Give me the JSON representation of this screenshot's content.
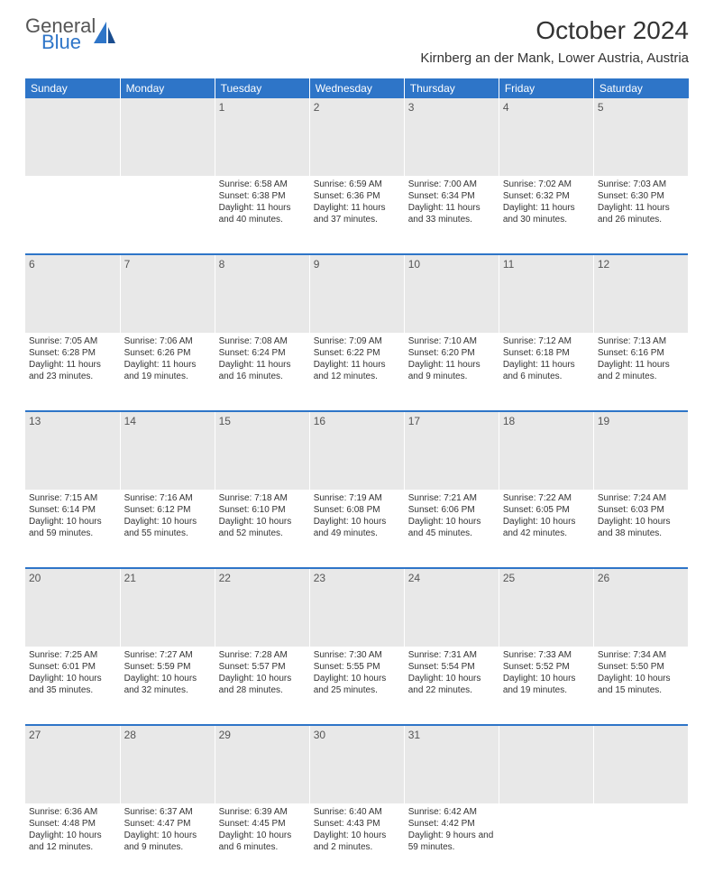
{
  "logo": {
    "general": "General",
    "blue": "Blue"
  },
  "title": "October 2024",
  "location": "Kirnberg an der Mank, Lower Austria, Austria",
  "weekdays": [
    "Sunday",
    "Monday",
    "Tuesday",
    "Wednesday",
    "Thursday",
    "Friday",
    "Saturday"
  ],
  "colors": {
    "header_bg": "#2e75c8",
    "daynum_bg": "#e8e8e8",
    "text": "#333333",
    "separator": "#2e75c8"
  },
  "weeks": [
    [
      {
        "n": "",
        "sunrise": "",
        "sunset": "",
        "daylight": ""
      },
      {
        "n": "",
        "sunrise": "",
        "sunset": "",
        "daylight": ""
      },
      {
        "n": "1",
        "sunrise": "Sunrise: 6:58 AM",
        "sunset": "Sunset: 6:38 PM",
        "daylight": "Daylight: 11 hours and 40 minutes."
      },
      {
        "n": "2",
        "sunrise": "Sunrise: 6:59 AM",
        "sunset": "Sunset: 6:36 PM",
        "daylight": "Daylight: 11 hours and 37 minutes."
      },
      {
        "n": "3",
        "sunrise": "Sunrise: 7:00 AM",
        "sunset": "Sunset: 6:34 PM",
        "daylight": "Daylight: 11 hours and 33 minutes."
      },
      {
        "n": "4",
        "sunrise": "Sunrise: 7:02 AM",
        "sunset": "Sunset: 6:32 PM",
        "daylight": "Daylight: 11 hours and 30 minutes."
      },
      {
        "n": "5",
        "sunrise": "Sunrise: 7:03 AM",
        "sunset": "Sunset: 6:30 PM",
        "daylight": "Daylight: 11 hours and 26 minutes."
      }
    ],
    [
      {
        "n": "6",
        "sunrise": "Sunrise: 7:05 AM",
        "sunset": "Sunset: 6:28 PM",
        "daylight": "Daylight: 11 hours and 23 minutes."
      },
      {
        "n": "7",
        "sunrise": "Sunrise: 7:06 AM",
        "sunset": "Sunset: 6:26 PM",
        "daylight": "Daylight: 11 hours and 19 minutes."
      },
      {
        "n": "8",
        "sunrise": "Sunrise: 7:08 AM",
        "sunset": "Sunset: 6:24 PM",
        "daylight": "Daylight: 11 hours and 16 minutes."
      },
      {
        "n": "9",
        "sunrise": "Sunrise: 7:09 AM",
        "sunset": "Sunset: 6:22 PM",
        "daylight": "Daylight: 11 hours and 12 minutes."
      },
      {
        "n": "10",
        "sunrise": "Sunrise: 7:10 AM",
        "sunset": "Sunset: 6:20 PM",
        "daylight": "Daylight: 11 hours and 9 minutes."
      },
      {
        "n": "11",
        "sunrise": "Sunrise: 7:12 AM",
        "sunset": "Sunset: 6:18 PM",
        "daylight": "Daylight: 11 hours and 6 minutes."
      },
      {
        "n": "12",
        "sunrise": "Sunrise: 7:13 AM",
        "sunset": "Sunset: 6:16 PM",
        "daylight": "Daylight: 11 hours and 2 minutes."
      }
    ],
    [
      {
        "n": "13",
        "sunrise": "Sunrise: 7:15 AM",
        "sunset": "Sunset: 6:14 PM",
        "daylight": "Daylight: 10 hours and 59 minutes."
      },
      {
        "n": "14",
        "sunrise": "Sunrise: 7:16 AM",
        "sunset": "Sunset: 6:12 PM",
        "daylight": "Daylight: 10 hours and 55 minutes."
      },
      {
        "n": "15",
        "sunrise": "Sunrise: 7:18 AM",
        "sunset": "Sunset: 6:10 PM",
        "daylight": "Daylight: 10 hours and 52 minutes."
      },
      {
        "n": "16",
        "sunrise": "Sunrise: 7:19 AM",
        "sunset": "Sunset: 6:08 PM",
        "daylight": "Daylight: 10 hours and 49 minutes."
      },
      {
        "n": "17",
        "sunrise": "Sunrise: 7:21 AM",
        "sunset": "Sunset: 6:06 PM",
        "daylight": "Daylight: 10 hours and 45 minutes."
      },
      {
        "n": "18",
        "sunrise": "Sunrise: 7:22 AM",
        "sunset": "Sunset: 6:05 PM",
        "daylight": "Daylight: 10 hours and 42 minutes."
      },
      {
        "n": "19",
        "sunrise": "Sunrise: 7:24 AM",
        "sunset": "Sunset: 6:03 PM",
        "daylight": "Daylight: 10 hours and 38 minutes."
      }
    ],
    [
      {
        "n": "20",
        "sunrise": "Sunrise: 7:25 AM",
        "sunset": "Sunset: 6:01 PM",
        "daylight": "Daylight: 10 hours and 35 minutes."
      },
      {
        "n": "21",
        "sunrise": "Sunrise: 7:27 AM",
        "sunset": "Sunset: 5:59 PM",
        "daylight": "Daylight: 10 hours and 32 minutes."
      },
      {
        "n": "22",
        "sunrise": "Sunrise: 7:28 AM",
        "sunset": "Sunset: 5:57 PM",
        "daylight": "Daylight: 10 hours and 28 minutes."
      },
      {
        "n": "23",
        "sunrise": "Sunrise: 7:30 AM",
        "sunset": "Sunset: 5:55 PM",
        "daylight": "Daylight: 10 hours and 25 minutes."
      },
      {
        "n": "24",
        "sunrise": "Sunrise: 7:31 AM",
        "sunset": "Sunset: 5:54 PM",
        "daylight": "Daylight: 10 hours and 22 minutes."
      },
      {
        "n": "25",
        "sunrise": "Sunrise: 7:33 AM",
        "sunset": "Sunset: 5:52 PM",
        "daylight": "Daylight: 10 hours and 19 minutes."
      },
      {
        "n": "26",
        "sunrise": "Sunrise: 7:34 AM",
        "sunset": "Sunset: 5:50 PM",
        "daylight": "Daylight: 10 hours and 15 minutes."
      }
    ],
    [
      {
        "n": "27",
        "sunrise": "Sunrise: 6:36 AM",
        "sunset": "Sunset: 4:48 PM",
        "daylight": "Daylight: 10 hours and 12 minutes."
      },
      {
        "n": "28",
        "sunrise": "Sunrise: 6:37 AM",
        "sunset": "Sunset: 4:47 PM",
        "daylight": "Daylight: 10 hours and 9 minutes."
      },
      {
        "n": "29",
        "sunrise": "Sunrise: 6:39 AM",
        "sunset": "Sunset: 4:45 PM",
        "daylight": "Daylight: 10 hours and 6 minutes."
      },
      {
        "n": "30",
        "sunrise": "Sunrise: 6:40 AM",
        "sunset": "Sunset: 4:43 PM",
        "daylight": "Daylight: 10 hours and 2 minutes."
      },
      {
        "n": "31",
        "sunrise": "Sunrise: 6:42 AM",
        "sunset": "Sunset: 4:42 PM",
        "daylight": "Daylight: 9 hours and 59 minutes."
      },
      {
        "n": "",
        "sunrise": "",
        "sunset": "",
        "daylight": ""
      },
      {
        "n": "",
        "sunrise": "",
        "sunset": "",
        "daylight": ""
      }
    ]
  ]
}
